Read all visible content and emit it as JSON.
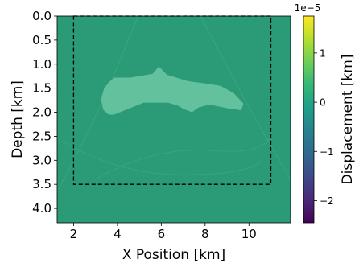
{
  "chart_data": {
    "type": "heatmap",
    "title": "",
    "xlabel": "X Position [km]",
    "ylabel": "Depth [km]",
    "xlim": [
      1.25,
      11.9
    ],
    "ylim": [
      4.3,
      0.0
    ],
    "x_ticks": [
      "2",
      "4",
      "6",
      "8",
      "10"
    ],
    "x_tick_values": [
      2,
      4,
      6,
      8,
      10
    ],
    "y_ticks": [
      "0.0",
      "0.5",
      "1.0",
      "1.5",
      "2.0",
      "2.5",
      "3.0",
      "3.5",
      "4.0"
    ],
    "y_tick_values": [
      0.0,
      0.5,
      1.0,
      1.5,
      2.0,
      2.5,
      3.0,
      3.5,
      4.0
    ],
    "background_color": "#2a9a77",
    "body_color": "#63c29d",
    "box": {
      "x": [
        2.0,
        11.0
      ],
      "depth": [
        0.0,
        3.5
      ],
      "style": "dashed",
      "color": "#000000"
    },
    "salt_body_outline": [
      [
        3.35,
        1.95
      ],
      [
        3.25,
        1.72
      ],
      [
        3.4,
        1.5
      ],
      [
        3.6,
        1.38
      ],
      [
        3.85,
        1.28
      ],
      [
        4.6,
        1.28
      ],
      [
        5.6,
        1.2
      ],
      [
        5.9,
        1.05
      ],
      [
        6.25,
        1.22
      ],
      [
        7.2,
        1.35
      ],
      [
        8.0,
        1.4
      ],
      [
        8.7,
        1.45
      ],
      [
        9.3,
        1.6
      ],
      [
        9.75,
        1.82
      ],
      [
        9.65,
        1.96
      ],
      [
        9.05,
        1.92
      ],
      [
        8.2,
        1.84
      ],
      [
        7.7,
        1.9
      ],
      [
        7.4,
        2.0
      ],
      [
        7.05,
        1.94
      ],
      [
        6.75,
        1.86
      ],
      [
        6.3,
        1.8
      ],
      [
        5.2,
        1.8
      ],
      [
        4.4,
        1.95
      ],
      [
        3.85,
        2.05
      ],
      [
        3.6,
        2.05
      ]
    ],
    "colorbar": {
      "label": "Displacement [km]",
      "scale_label": "1e−5",
      "range": [
        -2.45,
        1.75
      ],
      "ticks": [
        "−2",
        "−1",
        "0",
        "1"
      ],
      "tick_values": [
        -2,
        -1,
        0,
        1
      ],
      "colormap": "viridis",
      "colormap_stops": [
        "#440154",
        "#482878",
        "#3e4989",
        "#31688e",
        "#26828e",
        "#1f9e89",
        "#35b779",
        "#6ece58",
        "#b5de2b",
        "#fde725"
      ]
    }
  }
}
